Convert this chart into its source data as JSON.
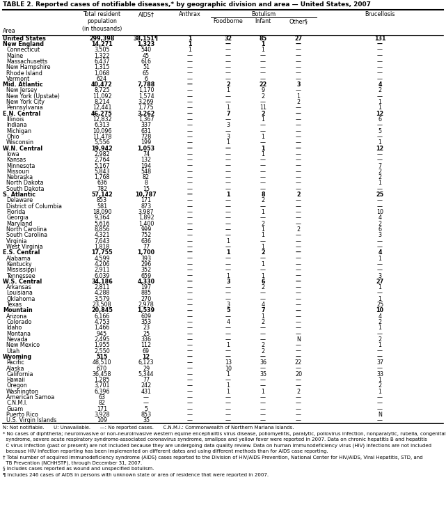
{
  "title": "TABLE 2. Reported cases of notifiable diseases,* by geographic division and area — United States, 2007",
  "botulism_header": "Botulism",
  "rows": [
    [
      "United States",
      "299,398",
      "38,151¶",
      "1",
      "32",
      "85",
      "27",
      "131"
    ],
    [
      "New England",
      "14,271",
      "1,323",
      "1",
      "—",
      "1",
      "—",
      "—"
    ],
    [
      "Connecticut",
      "3,505",
      "540",
      "1",
      "—",
      "1",
      "—",
      "—"
    ],
    [
      "Maine",
      "1,322",
      "45",
      "—",
      "—",
      "—",
      "—",
      "—"
    ],
    [
      "Massachusetts",
      "6,437",
      "616",
      "—",
      "—",
      "—",
      "—",
      "—"
    ],
    [
      "New Hampshire",
      "1,315",
      "51",
      "—",
      "—",
      "—",
      "—",
      "—"
    ],
    [
      "Rhode Island",
      "1,068",
      "65",
      "—",
      "—",
      "—",
      "—",
      "—"
    ],
    [
      "Vermont",
      "624",
      "6",
      "—",
      "—",
      "—",
      "—",
      "—"
    ],
    [
      "Mid. Atlantic",
      "40,472",
      "7,788",
      "—",
      "2",
      "22",
      "3",
      "4"
    ],
    [
      "New Jersey",
      "8,725",
      "1,170",
      "—",
      "1",
      "9",
      "—",
      "2"
    ],
    [
      "New York (Upstate)",
      "11,092",
      "1,574",
      "—",
      "—",
      "2",
      "1",
      "—"
    ],
    [
      "New York City",
      "8,214",
      "3,269",
      "—",
      "—",
      "—",
      "2",
      "1"
    ],
    [
      "Pennsylvania",
      "12,441",
      "1,775",
      "—",
      "1",
      "11",
      "—",
      "1"
    ],
    [
      "E.N. Central",
      "46,275",
      "3,262",
      "—",
      "7",
      "2",
      "—",
      "12"
    ],
    [
      "Illinois",
      "12,832",
      "1,367",
      "—",
      "—",
      "1",
      "—",
      "6"
    ],
    [
      "Indiana",
      "6,313",
      "337",
      "—",
      "3",
      "—",
      "—",
      "—"
    ],
    [
      "Michigan",
      "10,096",
      "631",
      "—",
      "—",
      "—",
      "—",
      "5"
    ],
    [
      "Ohio",
      "11,478",
      "728",
      "—",
      "3",
      "1",
      "—",
      "—"
    ],
    [
      "Wisconsin",
      "5,556",
      "199",
      "—",
      "1",
      "—",
      "—",
      "1"
    ],
    [
      "W.N. Central",
      "19,942",
      "1,053",
      "—",
      "—",
      "1",
      "—",
      "12"
    ],
    [
      "Iowa",
      "2,982",
      "74",
      "—",
      "—",
      "1",
      "—",
      "—"
    ],
    [
      "Kansas",
      "2,764",
      "132",
      "—",
      "—",
      "—",
      "—",
      "—"
    ],
    [
      "Minnesota",
      "5,167",
      "194",
      "—",
      "—",
      "—",
      "—",
      "7"
    ],
    [
      "Missouri",
      "5,843",
      "548",
      "—",
      "—",
      "—",
      "—",
      "2"
    ],
    [
      "Nebraska",
      "1,768",
      "82",
      "—",
      "—",
      "—",
      "—",
      "2"
    ],
    [
      "North Dakota",
      "636",
      "8",
      "—",
      "—",
      "—",
      "—",
      "1"
    ],
    [
      "South Dakota",
      "782",
      "15",
      "—",
      "—",
      "—",
      "—",
      "—"
    ],
    [
      "S. Atlantic",
      "57,142",
      "10,787",
      "—",
      "1",
      "8",
      "2",
      "25"
    ],
    [
      "Delaware",
      "853",
      "171",
      "—",
      "—",
      "2",
      "—",
      "—"
    ],
    [
      "District of Columbia",
      "581",
      "873",
      "—",
      "—",
      "—",
      "—",
      "—"
    ],
    [
      "Florida",
      "18,090",
      "3,987",
      "—",
      "—",
      "1",
      "—",
      "10"
    ],
    [
      "Georgia",
      "9,364",
      "1,892",
      "—",
      "—",
      "—",
      "—",
      "4"
    ],
    [
      "Maryland",
      "5,616",
      "1,400",
      "—",
      "—",
      "2",
      "—",
      "2"
    ],
    [
      "North Carolina",
      "8,856",
      "999",
      "—",
      "—",
      "1",
      "2",
      "6"
    ],
    [
      "South Carolina",
      "4,321",
      "752",
      "—",
      "—",
      "1",
      "—",
      "3"
    ],
    [
      "Virginia",
      "7,643",
      "636",
      "—",
      "1",
      "—",
      "—",
      "—"
    ],
    [
      "West Virginia",
      "1,818",
      "77",
      "—",
      "—",
      "1",
      "—",
      "—"
    ],
    [
      "E.S. Central",
      "17,755",
      "1,700",
      "—",
      "1",
      "2",
      "—",
      "4"
    ],
    [
      "Alabama",
      "4,599",
      "393",
      "—",
      "—",
      "—",
      "—",
      "1"
    ],
    [
      "Kentucky",
      "4,206",
      "296",
      "—",
      "—",
      "1",
      "—",
      "—"
    ],
    [
      "Mississippi",
      "2,911",
      "352",
      "—",
      "—",
      "—",
      "—",
      "—"
    ],
    [
      "Tennessee",
      "6,039",
      "659",
      "—",
      "1",
      "1",
      "—",
      "3"
    ],
    [
      "W.S. Central",
      "34,186",
      "4,330",
      "—",
      "3",
      "6",
      "—",
      "27"
    ],
    [
      "Arkansas",
      "2,811",
      "197",
      "—",
      "—",
      "2",
      "—",
      "1"
    ],
    [
      "Louisiana",
      "4,288",
      "885",
      "—",
      "—",
      "—",
      "—",
      "—"
    ],
    [
      "Oklahoma",
      "3,579",
      "270",
      "—",
      "—",
      "—",
      "—",
      "1"
    ],
    [
      "Texas",
      "23,508",
      "2,978",
      "—",
      "3",
      "4",
      "—",
      "25"
    ],
    [
      "Mountain",
      "20,845",
      "1,539",
      "—",
      "5",
      "7",
      "—",
      "10"
    ],
    [
      "Arizona",
      "6,166",
      "609",
      "—",
      "—",
      "1",
      "—",
      "4"
    ],
    [
      "Colorado",
      "4,753",
      "353",
      "—",
      "4",
      "2",
      "—",
      "2"
    ],
    [
      "Idaho",
      "1,466",
      "23",
      "—",
      "—",
      "—",
      "—",
      "1"
    ],
    [
      "Montana",
      "945",
      "25",
      "—",
      "—",
      "—",
      "—",
      "—"
    ],
    [
      "Nevada",
      "2,495",
      "336",
      "—",
      "—",
      "—",
      "N",
      "2"
    ],
    [
      "New Mexico",
      "1,955",
      "112",
      "—",
      "1",
      "2",
      "—",
      "1"
    ],
    [
      "Utah",
      "2,550",
      "69",
      "—",
      "—",
      "2",
      "—",
      "—"
    ],
    [
      "Wyoming",
      "515",
      "12",
      "—",
      "—",
      "—",
      "—",
      "—"
    ],
    [
      "Pacific",
      "48,510",
      "6,123",
      "—",
      "13",
      "36",
      "22",
      "37"
    ],
    [
      "Alaska",
      "670",
      "29",
      "—",
      "10",
      "—",
      "—",
      "—"
    ],
    [
      "California",
      "36,458",
      "5,344",
      "—",
      "1",
      "35",
      "20",
      "33"
    ],
    [
      "Hawaii",
      "1,285",
      "77",
      "—",
      "—",
      "—",
      "—",
      "1"
    ],
    [
      "Oregon",
      "3,701",
      "242",
      "—",
      "1",
      "—",
      "—",
      "2"
    ],
    [
      "Washington",
      "6,396",
      "431",
      "—",
      "1",
      "1",
      "2",
      "1"
    ],
    [
      "American Samoa",
      "63",
      "—",
      "—",
      "—",
      "—",
      "—",
      "—"
    ],
    [
      "C.N.M.I.",
      "82",
      "—",
      "—",
      "—",
      "—",
      "—",
      "—"
    ],
    [
      "Guam",
      "171",
      "5",
      "—",
      "—",
      "—",
      "—",
      "—"
    ],
    [
      "Puerto Rico",
      "3,928",
      "853",
      "—",
      "—",
      "—",
      "—",
      "N"
    ],
    [
      "U.S. Virgin Islands",
      "109",
      "35",
      "—",
      "—",
      "—",
      "—",
      "—"
    ]
  ],
  "bold_rows": [
    0,
    1,
    8,
    13,
    19,
    27,
    37,
    42,
    47,
    55
  ],
  "spacer_rows": [
    61
  ],
  "footnote_lines": [
    "N: Not notifiable.      U: Unavailable.      —: No reported cases.      C.N.M.I.: Commonwealth of Northern Mariana Islands.",
    "* No cases of diphtheria; neuroinvasive or non-neuroinvasive western equine encephalitis virus disease, poliomyelitis, paralytic, poliovirus infection, nonparalytic, rubella, congenital",
    "  syndrome, severe acute respiratory syndrome-associated coronavirus syndrome, smallpox and yellow fever were reported in 2007. Data on chronic hepatitis B and hepatitis",
    "  C virus infection (past or present) are not included because they are undergoing data quality review. Data on human immunodeficiency virus (HIV) infections are not included",
    "  because HIV infection reporting has been implemented on different dates and using different methods than for AIDS case reporting.",
    "† Total number of acquired immunodeficiency syndrome (AIDS) cases reported to the Division of HIV/AIDS Prevention, National Center for HIV/AIDS, Viral Hepatitis, STD, and",
    "  TB Prevention (NCHHSTP), through December 31, 2007.",
    "§ Includes cases reported as wound and unspecified botulism.",
    "¶ Includes 246 cases of AIDS in persons with unknown state or area of residence that were reported in 2007."
  ],
  "col_rights": [
    115,
    178,
    242,
    303,
    353,
    403,
    455,
    637
  ],
  "title_fontsize": 6.5,
  "header_fontsize": 5.8,
  "data_fontsize": 5.8,
  "footnote_fontsize": 5.0
}
